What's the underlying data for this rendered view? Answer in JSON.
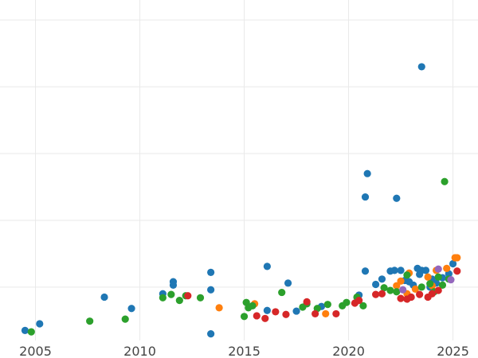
{
  "chart_data": {
    "type": "scatter",
    "title": "",
    "xlabel": "",
    "ylabel": "",
    "xlim": [
      2003.3,
      2026.2
    ],
    "ylim": [
      -0.1,
      5.0
    ],
    "x_ticks": [
      2005,
      2010,
      2015,
      2020,
      2025
    ],
    "x_tick_labels": [
      "2005",
      "2010",
      "2015",
      "2020",
      "2025"
    ],
    "y_gridlines": [
      0.7,
      1.7,
      2.7,
      3.7,
      4.7
    ],
    "grid": true,
    "legend": "none",
    "series": [
      {
        "color": "#1f77b4",
        "points": [
          [
            2004.5,
            0.05
          ],
          [
            2005.2,
            0.15
          ],
          [
            2008.3,
            0.55
          ],
          [
            2009.6,
            0.38
          ],
          [
            2011.1,
            0.6
          ],
          [
            2011.6,
            0.78
          ],
          [
            2011.6,
            0.73
          ],
          [
            2013.4,
            0.92
          ],
          [
            2013.4,
            0.66
          ],
          [
            2013.4,
            0.0
          ],
          [
            2016.1,
            1.01
          ],
          [
            2016.1,
            0.35
          ],
          [
            2017.1,
            0.76
          ],
          [
            2017.5,
            0.34
          ],
          [
            2018.7,
            0.41
          ],
          [
            2020.5,
            0.58
          ],
          [
            2020.8,
            0.94
          ],
          [
            2020.8,
            2.05
          ],
          [
            2020.9,
            2.4
          ],
          [
            2021.3,
            0.74
          ],
          [
            2021.6,
            0.82
          ],
          [
            2022.0,
            0.94
          ],
          [
            2022.2,
            0.95
          ],
          [
            2022.3,
            2.03
          ],
          [
            2022.5,
            0.95
          ],
          [
            2022.7,
            0.8
          ],
          [
            2022.9,
            0.78
          ],
          [
            2023.1,
            0.73
          ],
          [
            2023.3,
            0.98
          ],
          [
            2023.5,
            0.95
          ],
          [
            2023.5,
            4.0
          ],
          [
            2023.7,
            0.95
          ],
          [
            2023.9,
            0.7
          ],
          [
            2024.2,
            0.76
          ],
          [
            2024.5,
            0.84
          ],
          [
            2024.8,
            0.9
          ],
          [
            2025.0,
            1.05
          ],
          [
            2023.4,
            0.89
          ],
          [
            2024.0,
            0.82
          ]
        ]
      },
      {
        "color": "#ff7f0e",
        "points": [
          [
            2013.8,
            0.39
          ],
          [
            2015.5,
            0.45
          ],
          [
            2018.9,
            0.3
          ],
          [
            2022.3,
            0.72
          ],
          [
            2022.5,
            0.79
          ],
          [
            2022.9,
            0.91
          ],
          [
            2023.2,
            0.67
          ],
          [
            2023.8,
            0.85
          ],
          [
            2024.2,
            0.95
          ],
          [
            2024.7,
            0.98
          ],
          [
            2025.1,
            1.14
          ],
          [
            2025.2,
            1.14
          ],
          [
            2024.0,
            0.72
          ],
          [
            2022.8,
            0.6
          ]
        ]
      },
      {
        "color": "#2ca02c",
        "points": [
          [
            2004.8,
            0.03
          ],
          [
            2007.6,
            0.19
          ],
          [
            2009.3,
            0.22
          ],
          [
            2011.1,
            0.54
          ],
          [
            2011.5,
            0.59
          ],
          [
            2011.9,
            0.5
          ],
          [
            2012.2,
            0.57
          ],
          [
            2012.9,
            0.54
          ],
          [
            2015.0,
            0.26
          ],
          [
            2015.1,
            0.47
          ],
          [
            2015.2,
            0.39
          ],
          [
            2015.4,
            0.42
          ],
          [
            2016.8,
            0.62
          ],
          [
            2017.8,
            0.4
          ],
          [
            2018.0,
            0.45
          ],
          [
            2018.5,
            0.38
          ],
          [
            2019.0,
            0.44
          ],
          [
            2019.7,
            0.42
          ],
          [
            2019.9,
            0.47
          ],
          [
            2020.4,
            0.55
          ],
          [
            2020.7,
            0.42
          ],
          [
            2021.7,
            0.69
          ],
          [
            2022.0,
            0.65
          ],
          [
            2022.3,
            0.63
          ],
          [
            2022.8,
            0.88
          ],
          [
            2023.5,
            0.7
          ],
          [
            2023.9,
            0.75
          ],
          [
            2024.1,
            0.63
          ],
          [
            2024.3,
            0.85
          ],
          [
            2024.5,
            0.73
          ],
          [
            2024.6,
            2.28
          ],
          [
            2024.8,
            0.82
          ]
        ]
      },
      {
        "color": "#d62728",
        "points": [
          [
            2012.3,
            0.57
          ],
          [
            2015.6,
            0.27
          ],
          [
            2016.0,
            0.23
          ],
          [
            2016.5,
            0.33
          ],
          [
            2017.0,
            0.29
          ],
          [
            2018.0,
            0.48
          ],
          [
            2018.4,
            0.3
          ],
          [
            2019.4,
            0.3
          ],
          [
            2020.3,
            0.46
          ],
          [
            2020.5,
            0.5
          ],
          [
            2021.3,
            0.59
          ],
          [
            2021.6,
            0.6
          ],
          [
            2022.5,
            0.53
          ],
          [
            2022.8,
            0.52
          ],
          [
            2023.0,
            0.55
          ],
          [
            2023.4,
            0.59
          ],
          [
            2023.8,
            0.55
          ],
          [
            2024.0,
            0.6
          ],
          [
            2025.2,
            0.94
          ],
          [
            2024.3,
            0.65
          ]
        ]
      },
      {
        "color": "#9467bd",
        "points": [
          [
            2022.6,
            0.66
          ],
          [
            2024.3,
            0.97
          ],
          [
            2024.9,
            0.81
          ]
        ]
      }
    ]
  }
}
